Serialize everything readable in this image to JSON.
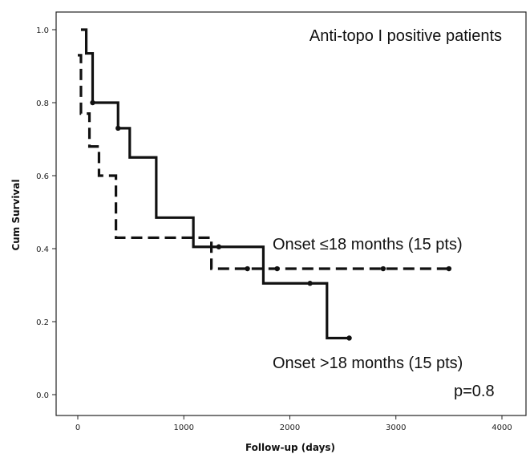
{
  "chart_data": {
    "type": "line",
    "title": "Anti-topo I positive patients",
    "xlabel": "Follow-up (days)",
    "ylabel": "Cum Survival",
    "xlim": [
      0,
      4000
    ],
    "ylim": [
      0,
      1.0
    ],
    "xticks": [
      "0",
      "1000",
      "2000",
      "3000",
      "4000"
    ],
    "yticks": [
      "0.0",
      "0.2",
      "0.4",
      "0.6",
      "0.8",
      "1.0"
    ],
    "grid": false,
    "series": [
      {
        "name": "Onset ≤18 months (15 pts)",
        "line_style": "dashed",
        "steps": [
          {
            "x": 0,
            "y": 0.93
          },
          {
            "x": 30,
            "y": 0.77
          },
          {
            "x": 110,
            "y": 0.68
          },
          {
            "x": 200,
            "y": 0.6
          },
          {
            "x": 360,
            "y": 0.43
          },
          {
            "x": 1260,
            "y": 0.345
          },
          {
            "x": 3500,
            "y": 0.345
          }
        ],
        "censored": [
          {
            "x": 1600,
            "y": 0.345
          },
          {
            "x": 1880,
            "y": 0.345
          },
          {
            "x": 2880,
            "y": 0.345
          },
          {
            "x": 3500,
            "y": 0.345
          }
        ]
      },
      {
        "name": "Onset >18 months (15 pts)",
        "line_style": "solid",
        "steps": [
          {
            "x": 30,
            "y": 1.0
          },
          {
            "x": 80,
            "y": 0.935
          },
          {
            "x": 140,
            "y": 0.8
          },
          {
            "x": 380,
            "y": 0.73
          },
          {
            "x": 490,
            "y": 0.65
          },
          {
            "x": 740,
            "y": 0.485
          },
          {
            "x": 1090,
            "y": 0.405
          },
          {
            "x": 1750,
            "y": 0.305
          },
          {
            "x": 2350,
            "y": 0.155
          },
          {
            "x": 2560,
            "y": 0.155
          }
        ],
        "censored": [
          {
            "x": 140,
            "y": 0.8
          },
          {
            "x": 380,
            "y": 0.73
          },
          {
            "x": 1330,
            "y": 0.405
          },
          {
            "x": 2190,
            "y": 0.305
          },
          {
            "x": 2560,
            "y": 0.155
          }
        ]
      }
    ],
    "annotations": {
      "label_early": "Onset ≤18 months (15 pts)",
      "label_late": "Onset >18 months (15 pts)",
      "p_value": "p=0.8"
    }
  }
}
